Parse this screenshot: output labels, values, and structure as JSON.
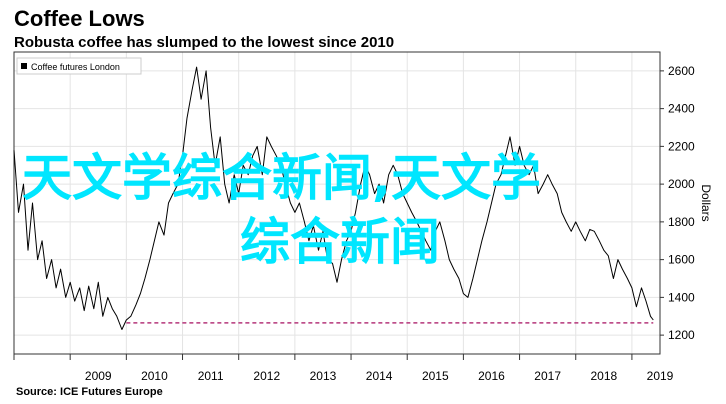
{
  "header": {
    "title": "Coffee Lows",
    "subtitle": "Robusta coffee has slumped to the lowest since 2010"
  },
  "footer": {
    "source": "Source: ICE Futures Europe"
  },
  "watermark": {
    "line1": "天文学综合新闻,天文学",
    "line2": "综合新闻"
  },
  "colors": {
    "series": "#000000",
    "reference_line": "#b5367a",
    "watermark": "#00e6ff",
    "grid": "#e4e4e4",
    "frame": "#333333"
  },
  "chart_data": {
    "type": "line",
    "xlabel": "",
    "ylabel": "Dollars",
    "x_ticks": [
      "2009",
      "2010",
      "2011",
      "2012",
      "2013",
      "2014",
      "2015",
      "2016",
      "2017",
      "2018",
      "2019"
    ],
    "y_ticks": [
      1200,
      1400,
      1600,
      1800,
      2000,
      2200,
      2400,
      2600
    ],
    "xlim": [
      2008.0,
      2019.5
    ],
    "ylim": [
      1100,
      2700
    ],
    "y_axis_position": "right",
    "grid": true,
    "legend": {
      "position": "top-left",
      "entries": [
        "Coffee futures London"
      ]
    },
    "series": [
      {
        "name": "Coffee futures London",
        "points": [
          [
            2008.0,
            2180
          ],
          [
            2008.08,
            1850
          ],
          [
            2008.17,
            2000
          ],
          [
            2008.25,
            1650
          ],
          [
            2008.33,
            1900
          ],
          [
            2008.42,
            1600
          ],
          [
            2008.5,
            1700
          ],
          [
            2008.58,
            1500
          ],
          [
            2008.67,
            1600
          ],
          [
            2008.75,
            1450
          ],
          [
            2008.83,
            1550
          ],
          [
            2008.92,
            1400
          ],
          [
            2009.0,
            1480
          ],
          [
            2009.08,
            1380
          ],
          [
            2009.17,
            1450
          ],
          [
            2009.25,
            1330
          ],
          [
            2009.33,
            1460
          ],
          [
            2009.42,
            1340
          ],
          [
            2009.5,
            1480
          ],
          [
            2009.58,
            1300
          ],
          [
            2009.67,
            1400
          ],
          [
            2009.75,
            1340
          ],
          [
            2009.83,
            1300
          ],
          [
            2009.92,
            1230
          ],
          [
            2010.0,
            1280
          ],
          [
            2010.08,
            1300
          ],
          [
            2010.17,
            1360
          ],
          [
            2010.25,
            1420
          ],
          [
            2010.33,
            1500
          ],
          [
            2010.42,
            1600
          ],
          [
            2010.5,
            1700
          ],
          [
            2010.58,
            1800
          ],
          [
            2010.67,
            1730
          ],
          [
            2010.75,
            1900
          ],
          [
            2010.83,
            1950
          ],
          [
            2010.92,
            2000
          ],
          [
            2011.0,
            2150
          ],
          [
            2011.08,
            2350
          ],
          [
            2011.17,
            2500
          ],
          [
            2011.25,
            2620
          ],
          [
            2011.33,
            2450
          ],
          [
            2011.42,
            2600
          ],
          [
            2011.5,
            2300
          ],
          [
            2011.58,
            2100
          ],
          [
            2011.67,
            2250
          ],
          [
            2011.75,
            2000
          ],
          [
            2011.83,
            1900
          ],
          [
            2011.92,
            2050
          ],
          [
            2012.0,
            1950
          ],
          [
            2012.08,
            2100
          ],
          [
            2012.17,
            2050
          ],
          [
            2012.25,
            2150
          ],
          [
            2012.33,
            2200
          ],
          [
            2012.42,
            2050
          ],
          [
            2012.5,
            2250
          ],
          [
            2012.58,
            2200
          ],
          [
            2012.67,
            2150
          ],
          [
            2012.75,
            2100
          ],
          [
            2012.83,
            2000
          ],
          [
            2012.92,
            1900
          ],
          [
            2013.0,
            1850
          ],
          [
            2013.08,
            1900
          ],
          [
            2013.17,
            1800
          ],
          [
            2013.25,
            1700
          ],
          [
            2013.33,
            1780
          ],
          [
            2013.42,
            1650
          ],
          [
            2013.5,
            1750
          ],
          [
            2013.58,
            1600
          ],
          [
            2013.67,
            1580
          ],
          [
            2013.75,
            1480
          ],
          [
            2013.83,
            1600
          ],
          [
            2013.92,
            1700
          ],
          [
            2014.0,
            1750
          ],
          [
            2014.08,
            1850
          ],
          [
            2014.17,
            2000
          ],
          [
            2014.25,
            2100
          ],
          [
            2014.33,
            2050
          ],
          [
            2014.42,
            1950
          ],
          [
            2014.5,
            2000
          ],
          [
            2014.58,
            1900
          ],
          [
            2014.67,
            2050
          ],
          [
            2014.75,
            2100
          ],
          [
            2014.83,
            2050
          ],
          [
            2014.92,
            1950
          ],
          [
            2015.0,
            1900
          ],
          [
            2015.08,
            1850
          ],
          [
            2015.17,
            1800
          ],
          [
            2015.25,
            1750
          ],
          [
            2015.33,
            1700
          ],
          [
            2015.42,
            1650
          ],
          [
            2015.5,
            1750
          ],
          [
            2015.58,
            1800
          ],
          [
            2015.67,
            1700
          ],
          [
            2015.75,
            1600
          ],
          [
            2015.83,
            1550
          ],
          [
            2015.92,
            1500
          ],
          [
            2016.0,
            1420
          ],
          [
            2016.08,
            1400
          ],
          [
            2016.17,
            1500
          ],
          [
            2016.25,
            1600
          ],
          [
            2016.33,
            1700
          ],
          [
            2016.42,
            1800
          ],
          [
            2016.5,
            1900
          ],
          [
            2016.58,
            2000
          ],
          [
            2016.67,
            2050
          ],
          [
            2016.75,
            2150
          ],
          [
            2016.83,
            2250
          ],
          [
            2016.92,
            2100
          ],
          [
            2017.0,
            2200
          ],
          [
            2017.08,
            2100
          ],
          [
            2017.17,
            2050
          ],
          [
            2017.25,
            2100
          ],
          [
            2017.33,
            1950
          ],
          [
            2017.42,
            2000
          ],
          [
            2017.5,
            2050
          ],
          [
            2017.58,
            2000
          ],
          [
            2017.67,
            1950
          ],
          [
            2017.75,
            1850
          ],
          [
            2017.83,
            1800
          ],
          [
            2017.92,
            1750
          ],
          [
            2018.0,
            1800
          ],
          [
            2018.08,
            1750
          ],
          [
            2018.17,
            1700
          ],
          [
            2018.25,
            1760
          ],
          [
            2018.33,
            1750
          ],
          [
            2018.42,
            1700
          ],
          [
            2018.5,
            1650
          ],
          [
            2018.58,
            1620
          ],
          [
            2018.67,
            1500
          ],
          [
            2018.75,
            1600
          ],
          [
            2018.83,
            1550
          ],
          [
            2018.92,
            1500
          ],
          [
            2019.0,
            1450
          ],
          [
            2019.08,
            1350
          ],
          [
            2019.17,
            1450
          ],
          [
            2019.25,
            1380
          ],
          [
            2019.33,
            1300
          ],
          [
            2019.38,
            1280
          ]
        ]
      }
    ],
    "reference_line": {
      "y": 1265,
      "x_start": 2010.0,
      "x_end": 2019.38,
      "style": "dashed"
    }
  }
}
